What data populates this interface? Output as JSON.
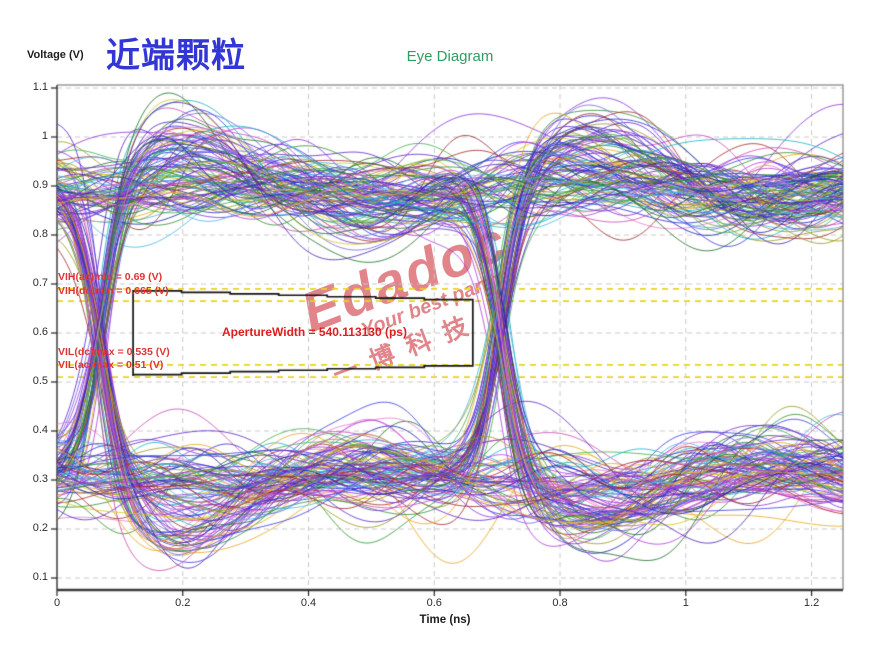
{
  "page": {
    "label": "近端颗粒"
  },
  "header": {
    "y_axis_title": "Voltage (V)",
    "chart_title": "Eye Diagram"
  },
  "watermark": {
    "brand": "Edadoc",
    "slogan": "Your best partner",
    "cn": "一博科技"
  },
  "chart_data": {
    "type": "line",
    "subtype": "eye_diagram",
    "title": "Eye Diagram",
    "xlabel": "Time (ns)",
    "ylabel": "Voltage (V)",
    "xlim": [
      0,
      1.25
    ],
    "ylim": [
      0.075,
      1.106
    ],
    "grid": true,
    "x_ticks": [
      0,
      0.2,
      0.4,
      0.6,
      0.8,
      1,
      1.2
    ],
    "x_tick_labels": [
      "0",
      "0.2",
      "0.4",
      "0.6",
      "0.8",
      "1",
      "1.2"
    ],
    "y_ticks": [
      1.1,
      1,
      0.9,
      0.8,
      0.7,
      0.6,
      0.5,
      0.4,
      0.3,
      0.2,
      0.1
    ],
    "y_tick_labels": [
      "1.1",
      "1",
      "0.9",
      "0.8",
      "0.7",
      "0.6",
      "0.5",
      "0.4",
      "0.3",
      "0.2",
      "0.1"
    ],
    "eye": {
      "n_traces": 220,
      "high_level_v": 0.9,
      "low_level_v": 0.3,
      "crossing_voltage_v": 0.6,
      "crossing_times_ns": [
        0.068,
        0.704
      ],
      "unit_interval_ns": 0.636,
      "overshoot_peak_v": 1.1,
      "undershoot_min_v": 0.1,
      "high_band_v": [
        0.8,
        1.0
      ],
      "low_band_v": [
        0.2,
        0.4
      ],
      "rise_time_ns": 0.1
    },
    "thresholds": [
      {
        "name": "VIH(ac)min",
        "value_v": 0.69,
        "label": "VIH(ac)min = 0.69 (V)"
      },
      {
        "name": "VIH(dc)min",
        "value_v": 0.665,
        "label": "VIH(dc)min = 0.665 (V)"
      },
      {
        "name": "VIL(dc)max",
        "value_v": 0.535,
        "label": "VIL(dc)max = 0.535 (V)"
      },
      {
        "name": "VIL(ac)max",
        "value_v": 0.51,
        "label": "VIL(ac)max = 0.51 (V)"
      }
    ],
    "aperture": {
      "label": "ApertureWidth = 540.113130 (ps)",
      "width_ps": 540.11313,
      "t_start_ns": 0.121,
      "t_end_ns": 0.6613,
      "v_top_left": 0.686,
      "v_top_right": 0.665,
      "v_bottom_left": 0.512,
      "v_bottom_right": 0.533
    },
    "colors": {
      "grid": "#c9c9c9",
      "threshold_line": "#e6d51e",
      "annotation_red": "#e02828",
      "title_green": "#2e9e60",
      "page_label_blue": "#3136d4",
      "watermark_red": "rgba(200,33,44,0.55)",
      "axis_dark": "#3c3c3c",
      "border_gray": "#9a9a9a",
      "aperture_box": "#131313"
    },
    "trace_palette": [
      "#2b2bd4",
      "#5b24c9",
      "#8c30da",
      "#1c1cae",
      "#b43cda",
      "#3a3ae0",
      "#7b2fd2",
      "#2f8f2f",
      "#1c6e26",
      "#3fae4a",
      "#e8a61e",
      "#d8c41c",
      "#17b3c4",
      "#49b6e8",
      "#a02828",
      "#cc49b0",
      "#6a6ae8",
      "#9a9a20",
      "#e87bd0",
      "#4a24b0"
    ]
  }
}
